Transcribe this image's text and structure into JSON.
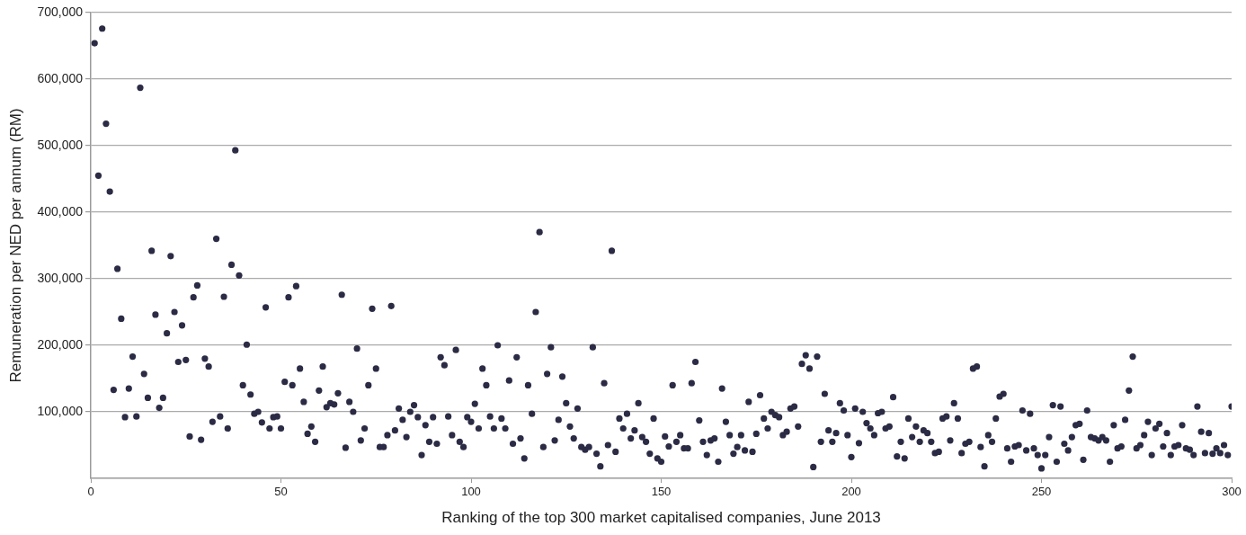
{
  "chart_data": {
    "type": "scatter",
    "xlabel": "Ranking of the top 300 market capitalised companies, June 2013",
    "ylabel": "Remuneration per NED per annum (RM)",
    "color": "#2b2b45",
    "marker": "circle",
    "grid": "y",
    "xlim": [
      0,
      300
    ],
    "xticks": [
      0,
      50,
      100,
      150,
      200,
      250,
      300
    ],
    "ylim": [
      0,
      700000
    ],
    "yticks": [
      {
        "value": 100000,
        "label": "100,000"
      },
      {
        "value": 200000,
        "label": "200,000"
      },
      {
        "value": 300000,
        "label": "300,000"
      },
      {
        "value": 400000,
        "label": "400,000"
      },
      {
        "value": 500000,
        "label": "500,000"
      },
      {
        "value": 600000,
        "label": "600,000"
      },
      {
        "value": 700000,
        "label": "700,000"
      }
    ],
    "x": [
      1,
      2,
      3,
      4,
      5,
      6,
      7,
      8,
      9,
      10,
      11,
      12,
      13,
      14,
      15,
      16,
      17,
      18,
      19,
      20,
      21,
      22,
      23,
      24,
      25,
      26,
      27,
      28,
      29,
      30,
      31,
      32,
      33,
      34,
      35,
      36,
      37,
      38,
      39,
      40,
      41,
      42,
      43,
      44,
      45,
      46,
      47,
      48,
      49,
      50,
      51,
      52,
      53,
      54,
      55,
      56,
      57,
      58,
      59,
      60,
      61,
      62,
      63,
      64,
      65,
      66,
      67,
      68,
      69,
      70,
      71,
      72,
      73,
      74,
      75,
      76,
      77,
      78,
      79,
      80,
      81,
      82,
      83,
      84,
      85,
      86,
      87,
      88,
      89,
      90,
      91,
      92,
      93,
      94,
      95,
      96,
      97,
      98,
      99,
      100,
      101,
      102,
      103,
      104,
      105,
      106,
      107,
      108,
      109,
      110,
      111,
      112,
      113,
      114,
      115,
      116,
      117,
      118,
      119,
      120,
      121,
      122,
      123,
      124,
      125,
      126,
      127,
      128,
      129,
      130,
      131,
      132,
      133,
      134,
      135,
      136,
      137,
      138,
      139,
      140,
      141,
      142,
      143,
      144,
      145,
      146,
      147,
      148,
      149,
      150,
      151,
      152,
      153,
      154,
      155,
      156,
      157,
      158,
      159,
      160,
      161,
      162,
      163,
      164,
      165,
      166,
      167,
      168,
      169,
      170,
      171,
      172,
      173,
      174,
      175,
      176,
      177,
      178,
      179,
      180,
      181,
      182,
      183,
      184,
      185,
      186,
      187,
      188,
      189,
      190,
      191,
      192,
      193,
      194,
      195,
      196,
      197,
      198,
      199,
      200,
      201,
      202,
      203,
      204,
      205,
      206,
      207,
      208,
      209,
      210,
      211,
      212,
      213,
      214,
      215,
      216,
      217,
      218,
      219,
      220,
      221,
      222,
      223,
      224,
      225,
      226,
      227,
      228,
      229,
      230,
      231,
      232,
      233,
      234,
      235,
      236,
      237,
      238,
      239,
      240,
      241,
      242,
      243,
      244,
      245,
      246,
      247,
      248,
      249,
      250,
      251,
      252,
      253,
      254,
      255,
      256,
      257,
      258,
      259,
      260,
      261,
      262,
      263,
      264,
      265,
      266,
      267,
      268,
      269,
      270,
      271,
      272,
      273,
      274,
      275,
      276,
      277,
      278,
      279,
      280,
      281,
      282,
      283,
      284,
      285,
      286,
      287,
      288,
      289,
      290,
      291,
      292,
      293,
      294,
      295,
      296,
      297,
      298,
      299,
      300
    ],
    "values": [
      654000,
      455000,
      676000,
      533000,
      431000,
      133000,
      315000,
      240000,
      92000,
      135000,
      183000,
      93000,
      587000,
      157000,
      121000,
      342000,
      246000,
      106000,
      121000,
      218000,
      334000,
      250000,
      175000,
      230000,
      178000,
      63000,
      272000,
      290000,
      58000,
      180000,
      168000,
      85000,
      360000,
      93000,
      273000,
      75000,
      321000,
      493000,
      305000,
      140000,
      201000,
      126000,
      97000,
      100000,
      84000,
      257000,
      75000,
      92000,
      93000,
      75000,
      145000,
      272000,
      140000,
      289000,
      165000,
      115000,
      67000,
      78000,
      55000,
      132000,
      168000,
      107000,
      113000,
      111000,
      128000,
      276000,
      46000,
      115000,
      100000,
      195000,
      57000,
      75000,
      140000,
      255000,
      165000,
      47000,
      47000,
      65000,
      259000,
      72000,
      105000,
      88000,
      62000,
      100000,
      110000,
      92000,
      35000,
      80000,
      55000,
      92000,
      52000,
      182000,
      170000,
      93000,
      65000,
      193000,
      55000,
      47000,
      92000,
      85000,
      112000,
      75000,
      165000,
      140000,
      93000,
      75000,
      200000,
      90000,
      75000,
      147000,
      52000,
      182000,
      60000,
      30000,
      140000,
      97000,
      250000,
      370000,
      47000,
      157000,
      197000,
      57000,
      88000,
      153000,
      113000,
      78000,
      60000,
      105000,
      47000,
      43000,
      47000,
      197000,
      37000,
      18000,
      143000,
      50000,
      342000,
      40000,
      90000,
      75000,
      97000,
      60000,
      72000,
      113000,
      62000,
      55000,
      37000,
      90000,
      30000,
      25000,
      63000,
      48000,
      140000,
      55000,
      65000,
      45000,
      45000,
      143000,
      175000,
      87000,
      55000,
      35000,
      57000,
      60000,
      25000,
      135000,
      85000,
      65000,
      37000,
      47000,
      65000,
      42000,
      115000,
      40000,
      67000,
      125000,
      90000,
      75000,
      100000,
      95000,
      92000,
      65000,
      70000,
      105000,
      108000,
      78000,
      172000,
      185000,
      165000,
      17000,
      183000,
      55000,
      127000,
      72000,
      55000,
      68000,
      113000,
      102000,
      65000,
      32000,
      105000,
      53000,
      100000,
      83000,
      75000,
      65000,
      98000,
      100000,
      75000,
      78000,
      122000,
      33000,
      55000,
      30000,
      90000,
      62000,
      78000,
      55000,
      72000,
      68000,
      55000,
      38000,
      40000,
      90000,
      93000,
      57000,
      113000,
      90000,
      38000,
      52000,
      55000,
      165000,
      168000,
      47000,
      18000,
      65000,
      55000,
      90000,
      123000,
      127000,
      45000,
      25000,
      48000,
      50000,
      102000,
      42000,
      97000,
      45000,
      35000,
      15000,
      35000,
      62000,
      110000,
      25000,
      108000,
      52000,
      42000,
      62000,
      80000,
      82000,
      28000,
      102000,
      62000,
      60000,
      57000,
      62000,
      57000,
      25000,
      80000,
      45000,
      48000,
      88000,
      132000,
      183000,
      45000,
      50000,
      65000,
      85000,
      35000,
      75000,
      82000,
      48000,
      68000,
      35000,
      48000,
      50000,
      80000,
      45000,
      43000,
      35000,
      108000,
      70000,
      38000,
      68000,
      37000,
      45000,
      38000,
      50000,
      35000,
      108000
    ]
  }
}
